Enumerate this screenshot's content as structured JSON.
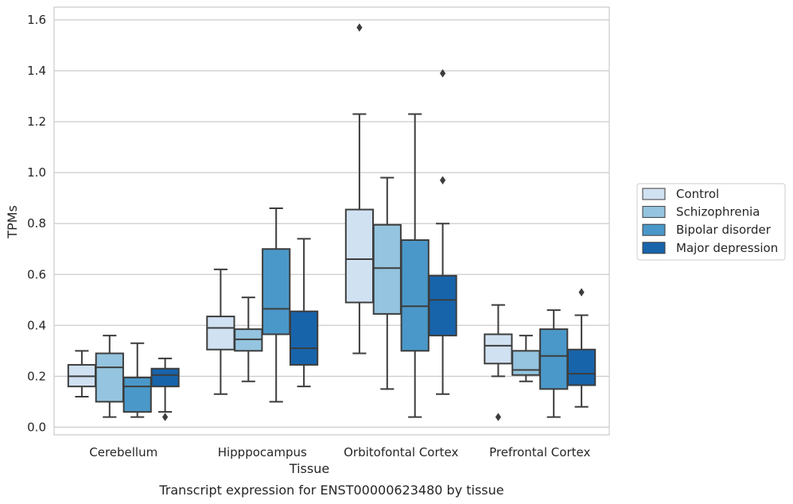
{
  "chart_data": {
    "type": "box",
    "caption": "Transcript expression for ENST00000623480 by tissue",
    "xlabel": "Tissue",
    "ylabel": "TPMs",
    "ylim": [
      -0.03,
      1.65
    ],
    "yticks": [
      "0.0",
      "0.2",
      "0.4",
      "0.6",
      "0.8",
      "1.0",
      "1.2",
      "1.4",
      "1.6"
    ],
    "ytick_values": [
      0.0,
      0.2,
      0.4,
      0.6,
      0.8,
      1.0,
      1.2,
      1.4,
      1.6
    ],
    "categories": [
      "Cerebellum",
      "Hipppocampus",
      "Orbitofontal Cortex",
      "Prefrontal Cortex"
    ],
    "grid": true,
    "legend_position": "right",
    "series": [
      {
        "name": "Control",
        "color": "#d0e1f2",
        "boxes": [
          {
            "whislo": 0.12,
            "q1": 0.16,
            "med": 0.2,
            "q3": 0.245,
            "whishi": 0.3,
            "fliers": []
          },
          {
            "whislo": 0.13,
            "q1": 0.305,
            "med": 0.39,
            "q3": 0.435,
            "whishi": 0.62,
            "fliers": []
          },
          {
            "whislo": 0.29,
            "q1": 0.49,
            "med": 0.66,
            "q3": 0.855,
            "whishi": 1.23,
            "fliers": [
              1.57
            ]
          },
          {
            "whislo": 0.2,
            "q1": 0.25,
            "med": 0.32,
            "q3": 0.365,
            "whishi": 0.48,
            "fliers": [
              0.04
            ]
          }
        ]
      },
      {
        "name": "Schizophrenia",
        "color": "#94c4df",
        "boxes": [
          {
            "whislo": 0.04,
            "q1": 0.1,
            "med": 0.235,
            "q3": 0.29,
            "whishi": 0.36,
            "fliers": []
          },
          {
            "whislo": 0.18,
            "q1": 0.3,
            "med": 0.345,
            "q3": 0.385,
            "whishi": 0.51,
            "fliers": []
          },
          {
            "whislo": 0.15,
            "q1": 0.445,
            "med": 0.625,
            "q3": 0.795,
            "whishi": 0.98,
            "fliers": []
          },
          {
            "whislo": 0.18,
            "q1": 0.205,
            "med": 0.225,
            "q3": 0.3,
            "whishi": 0.36,
            "fliers": []
          }
        ]
      },
      {
        "name": "Bipolar disorder",
        "color": "#4a98c9",
        "boxes": [
          {
            "whislo": 0.04,
            "q1": 0.06,
            "med": 0.16,
            "q3": 0.195,
            "whishi": 0.33,
            "fliers": []
          },
          {
            "whislo": 0.1,
            "q1": 0.365,
            "med": 0.465,
            "q3": 0.7,
            "whishi": 0.86,
            "fliers": []
          },
          {
            "whislo": 0.04,
            "q1": 0.3,
            "med": 0.475,
            "q3": 0.735,
            "whishi": 1.23,
            "fliers": []
          },
          {
            "whislo": 0.04,
            "q1": 0.15,
            "med": 0.28,
            "q3": 0.385,
            "whishi": 0.46,
            "fliers": []
          }
        ]
      },
      {
        "name": "Major depression",
        "color": "#1764ab",
        "boxes": [
          {
            "whislo": 0.06,
            "q1": 0.16,
            "med": 0.205,
            "q3": 0.23,
            "whishi": 0.27,
            "fliers": [
              0.04
            ]
          },
          {
            "whislo": 0.16,
            "q1": 0.245,
            "med": 0.31,
            "q3": 0.455,
            "whishi": 0.74,
            "fliers": []
          },
          {
            "whislo": 0.13,
            "q1": 0.36,
            "med": 0.5,
            "q3": 0.595,
            "whishi": 0.8,
            "fliers": [
              1.39,
              0.97
            ]
          },
          {
            "whislo": 0.08,
            "q1": 0.165,
            "med": 0.21,
            "q3": 0.305,
            "whishi": 0.44,
            "fliers": [
              0.53
            ]
          }
        ]
      }
    ]
  }
}
